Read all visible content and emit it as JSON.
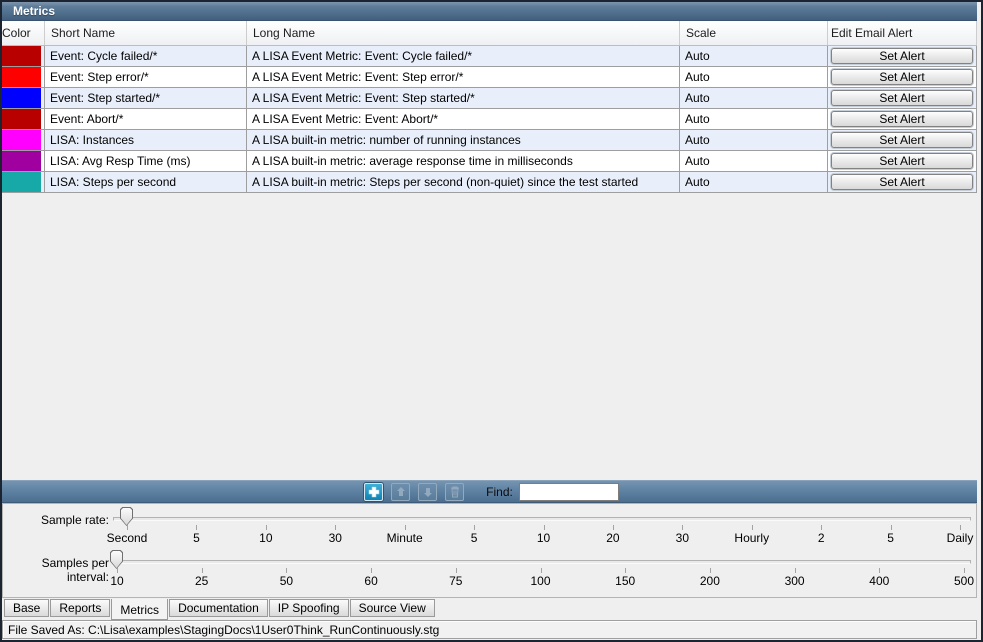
{
  "window": {
    "title": "Metrics"
  },
  "table": {
    "columns": [
      "Color",
      "Short Name",
      "Long Name",
      "Scale",
      "Edit Email Alert"
    ],
    "rows": [
      {
        "color": "#b80000",
        "short": "Event: Cycle failed/*",
        "long": "A LISA Event Metric: Event: Cycle failed/*",
        "scale": "Auto",
        "alert": "Set Alert"
      },
      {
        "color": "#ff0000",
        "short": "Event: Step error/*",
        "long": "A LISA Event Metric: Event: Step error/*",
        "scale": "Auto",
        "alert": "Set Alert"
      },
      {
        "color": "#0000ff",
        "short": "Event: Step started/*",
        "long": "A LISA Event Metric: Event: Step started/*",
        "scale": "Auto",
        "alert": "Set Alert"
      },
      {
        "color": "#b80000",
        "short": "Event: Abort/*",
        "long": "A LISA Event Metric: Event: Abort/*",
        "scale": "Auto",
        "alert": "Set Alert"
      },
      {
        "color": "#ff00ff",
        "short": "LISA: Instances",
        "long": "A LISA built-in metric: number of running instances",
        "scale": "Auto",
        "alert": "Set Alert"
      },
      {
        "color": "#a000a0",
        "short": "LISA: Avg Resp Time (ms)",
        "long": "A LISA built-in metric: average response time in milliseconds",
        "scale": "Auto",
        "alert": "Set Alert"
      },
      {
        "color": "#17a8a8",
        "short": "LISA: Steps per second",
        "long": "A LISA built-in metric: Steps per second (non-quiet) since the test started",
        "scale": "Auto",
        "alert": "Set Alert"
      }
    ]
  },
  "toolbar": {
    "icons": [
      "add-icon",
      "move-up-icon",
      "move-down-icon",
      "delete-icon"
    ],
    "add_color": "#1593c3",
    "find_label": "Find:",
    "find_value": ""
  },
  "sliders": {
    "sample_rate": {
      "label": "Sample rate:",
      "selected": "Second",
      "ticks": [
        "Second",
        "5",
        "10",
        "30",
        "Minute",
        "5",
        "10",
        "20",
        "30",
        "Hourly",
        "2",
        "5",
        "Daily"
      ]
    },
    "samples_per_interval": {
      "label": "Samples per interval:",
      "selected": "10",
      "ticks": [
        "10",
        "25",
        "50",
        "60",
        "75",
        "100",
        "150",
        "200",
        "300",
        "400",
        "500"
      ]
    }
  },
  "tabs": {
    "selected": "Metrics",
    "items": [
      "Base",
      "Reports",
      "Metrics",
      "Documentation",
      "IP Spoofing",
      "Source View"
    ]
  },
  "status": {
    "text": "File Saved As: C:\\Lisa\\examples\\StagingDocs\\1User0Think_RunContinuously.stg"
  }
}
